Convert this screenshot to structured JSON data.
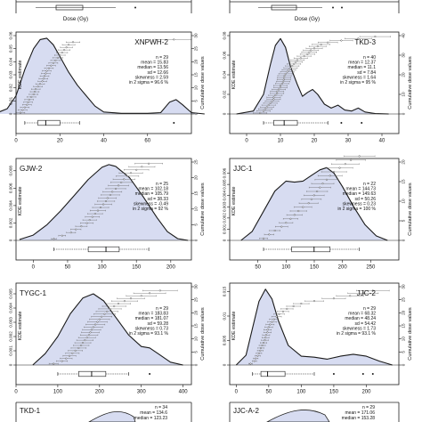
{
  "figure": {
    "x_axis_title": "Dose (Gy)",
    "y_left_title": "KDE estimate",
    "y_right_title": "Cumulative dose values"
  },
  "chart_data": [
    {
      "type": "area",
      "panel": "top-left-partial",
      "visible": "partial",
      "title": "",
      "xlabel": "Dose (Gy)",
      "x_ticks": [],
      "y_ticks": [],
      "stats": [],
      "kde": [],
      "right_ticks": [],
      "outliers": []
    },
    {
      "type": "area",
      "panel": "top-right-partial",
      "visible": "partial",
      "title": "",
      "xlabel": "Dose (Gy)",
      "x_ticks": [],
      "y_ticks": [],
      "stats": [],
      "kde": [],
      "right_ticks": [],
      "outliers": []
    },
    {
      "type": "area",
      "title": "XNPWH-2",
      "xlabel": "",
      "xlim": [
        0,
        80
      ],
      "x_ticks": [
        0,
        20,
        40,
        60
      ],
      "ylim": [
        0,
        0.06
      ],
      "y_ticks": [
        0.0,
        0.01,
        0.02,
        0.03,
        0.04,
        0.05,
        0.06
      ],
      "y_right": [
        0,
        30
      ],
      "right_ticks": [
        0,
        5,
        10,
        15,
        20,
        25,
        30
      ],
      "stats": [
        "n = 29",
        "mean = 15.83",
        "median = 13.56",
        "sd = 12.66",
        "skewness = 2.59",
        "in 2 sigma = 96.6 %"
      ],
      "kde": [
        [
          -10,
          0
        ],
        [
          -4,
          0.004
        ],
        [
          0,
          0.014
        ],
        [
          4,
          0.034
        ],
        [
          8,
          0.05
        ],
        [
          11,
          0.057
        ],
        [
          14,
          0.058
        ],
        [
          17,
          0.053
        ],
        [
          20,
          0.044
        ],
        [
          24,
          0.032
        ],
        [
          28,
          0.022
        ],
        [
          32,
          0.014
        ],
        [
          36,
          0.006
        ],
        [
          40,
          0.0015
        ],
        [
          48,
          0.0005
        ],
        [
          60,
          0.0005
        ],
        [
          66,
          0.001
        ],
        [
          70,
          0.009
        ],
        [
          73,
          0.011
        ],
        [
          76,
          0.007
        ],
        [
          80,
          0.001
        ],
        [
          86,
          0
        ]
      ],
      "box": {
        "min": 4,
        "q1": 10,
        "median": 13.56,
        "q3": 20,
        "max": 29
      },
      "outliers": [
        72
      ],
      "cumulative": [
        2,
        3,
        4,
        5,
        5.5,
        6,
        7,
        8,
        8.5,
        9,
        10,
        11,
        12,
        12.5,
        13,
        13.56,
        14,
        15,
        16,
        17,
        18,
        19,
        20,
        21,
        22,
        23,
        24,
        26,
        72
      ]
    },
    {
      "type": "area",
      "title": "TKD-3",
      "xlabel": "",
      "xlim": [
        -5,
        45
      ],
      "x_ticks": [
        0,
        10,
        20,
        30,
        40
      ],
      "ylim": [
        0,
        0.08
      ],
      "y_ticks": [
        0.0,
        0.02,
        0.04,
        0.06,
        0.08
      ],
      "y_right": [
        0,
        40
      ],
      "right_ticks": [
        0,
        10,
        20,
        30,
        40
      ],
      "stats": [
        "n = 40",
        "mean = 12.37",
        "median = 11.1",
        "sd = 7.84",
        "skewness = 1.64",
        "in 2 sigma = 95 %"
      ],
      "kde": [
        [
          -3,
          0
        ],
        [
          2,
          0.003
        ],
        [
          5,
          0.02
        ],
        [
          7,
          0.05
        ],
        [
          8.5,
          0.07
        ],
        [
          10,
          0.077
        ],
        [
          11.5,
          0.068
        ],
        [
          13,
          0.048
        ],
        [
          15,
          0.03
        ],
        [
          16.5,
          0.018
        ],
        [
          18,
          0.022
        ],
        [
          19.5,
          0.025
        ],
        [
          21,
          0.02
        ],
        [
          23,
          0.01
        ],
        [
          25,
          0.006
        ],
        [
          27,
          0.009
        ],
        [
          29,
          0.004
        ],
        [
          31,
          0.003
        ],
        [
          33,
          0.006
        ],
        [
          35,
          0.002
        ],
        [
          38,
          0.0005
        ],
        [
          42,
          0
        ]
      ],
      "box": {
        "min": 5,
        "q1": 8,
        "median": 11.1,
        "q3": 15,
        "max": 24
      },
      "outliers": [
        28,
        34
      ],
      "cumulative": [
        4,
        5,
        5.5,
        6,
        6.5,
        7,
        7.5,
        8,
        8,
        8.5,
        9,
        9,
        9.5,
        10,
        10,
        10.5,
        10.8,
        11,
        11.1,
        11.2,
        11.5,
        12,
        12.5,
        13,
        13.5,
        14,
        14.5,
        15,
        16,
        17,
        18,
        18.5,
        19,
        20,
        21,
        22,
        24,
        28,
        33,
        38
      ]
    },
    {
      "type": "area",
      "title": "GJW-2",
      "xlabel": "",
      "xlim": [
        -25,
        230
      ],
      "x_ticks": [
        0,
        50,
        100,
        150,
        200
      ],
      "ylim": [
        0,
        0.009
      ],
      "y_ticks": [
        0.0,
        0.002,
        0.004,
        0.006,
        0.008
      ],
      "y_right": [
        0,
        25
      ],
      "right_ticks": [
        0,
        5,
        10,
        15,
        20,
        25
      ],
      "stats": [
        "n = 25",
        "mean = 102.18",
        "median = 105.79",
        "sd = 38.33",
        "skewness = -0.49",
        "in 2 sigma = 92 %"
      ],
      "kde": [
        [
          -20,
          0.0001
        ],
        [
          0,
          0.0006
        ],
        [
          20,
          0.0018
        ],
        [
          40,
          0.0034
        ],
        [
          60,
          0.0052
        ],
        [
          80,
          0.007
        ],
        [
          100,
          0.0084
        ],
        [
          110,
          0.0087
        ],
        [
          120,
          0.0085
        ],
        [
          140,
          0.0072
        ],
        [
          160,
          0.005
        ],
        [
          180,
          0.0026
        ],
        [
          195,
          0.001
        ],
        [
          210,
          0.0002
        ],
        [
          225,
          0
        ]
      ],
      "box": {
        "min": 30,
        "q1": 80,
        "median": 105.79,
        "q3": 125,
        "max": 168
      },
      "outliers": [],
      "cumulative": [
        30,
        42,
        55,
        62,
        70,
        78,
        82,
        86,
        90,
        94,
        98,
        102,
        105.79,
        108,
        112,
        115,
        120,
        124,
        128,
        132,
        137,
        142,
        150,
        158,
        168
      ]
    },
    {
      "type": "area",
      "title": "JJC-1",
      "xlabel": "",
      "xlim": [
        0,
        300
      ],
      "x_ticks": [
        50,
        100,
        150,
        200,
        250
      ],
      "ylim": [
        0,
        0.007
      ],
      "y_ticks": [
        0.0,
        0.001,
        0.002,
        0.003,
        0.004,
        0.005,
        0.006
      ],
      "y_right": [
        0,
        22
      ],
      "right_ticks": [
        0,
        5,
        10,
        15,
        20
      ],
      "stats": [
        "n = 22",
        "mean = 144.73",
        "median = 149.63",
        "sd = 50.26",
        "skewness = 0.23",
        "in 2 sigma = 100 %"
      ],
      "kde": [
        [
          20,
          0
        ],
        [
          40,
          0.0008
        ],
        [
          60,
          0.0026
        ],
        [
          80,
          0.0044
        ],
        [
          100,
          0.0053
        ],
        [
          115,
          0.0052
        ],
        [
          130,
          0.0053
        ],
        [
          145,
          0.0058
        ],
        [
          160,
          0.0063
        ],
        [
          172,
          0.0065
        ],
        [
          185,
          0.006
        ],
        [
          200,
          0.0048
        ],
        [
          220,
          0.003
        ],
        [
          240,
          0.0014
        ],
        [
          260,
          0.0004
        ],
        [
          280,
          0
        ]
      ],
      "box": {
        "min": 60,
        "q1": 110,
        "median": 149.63,
        "q3": 178,
        "max": 230
      },
      "outliers": [],
      "cumulative": [
        60,
        70,
        80,
        92,
        100,
        108,
        115,
        122,
        130,
        140,
        145,
        149.63,
        155,
        160,
        165,
        172,
        178,
        185,
        195,
        205,
        215,
        230
      ]
    },
    {
      "type": "area",
      "title": "TYGC-1",
      "xlabel": "",
      "xlim": [
        0,
        420
      ],
      "x_ticks": [
        0,
        100,
        200,
        300,
        400
      ],
      "ylim": [
        0,
        0.0055
      ],
      "y_ticks": [
        0.0,
        0.001,
        0.002,
        0.003,
        0.004,
        0.005
      ],
      "y_right": [
        0,
        30
      ],
      "right_ticks": [
        0,
        5,
        10,
        15,
        20,
        25,
        30
      ],
      "stats": [
        "n = 29",
        "mean = 183.83",
        "median = 181.07",
        "sd = 59.28",
        "skewness = 0.73",
        "in 2 sigma = 93.1 %"
      ],
      "kde": [
        [
          40,
          0
        ],
        [
          70,
          0.0008
        ],
        [
          100,
          0.002
        ],
        [
          130,
          0.0036
        ],
        [
          160,
          0.0047
        ],
        [
          185,
          0.005
        ],
        [
          210,
          0.0045
        ],
        [
          240,
          0.0033
        ],
        [
          270,
          0.0021
        ],
        [
          300,
          0.0013
        ],
        [
          320,
          0.0012
        ],
        [
          340,
          0.0008
        ],
        [
          370,
          0.0002
        ],
        [
          400,
          0
        ]
      ],
      "box": {
        "min": 100,
        "q1": 150,
        "median": 181.07,
        "q3": 215,
        "max": 270
      },
      "outliers": [
        320
      ],
      "cumulative": [
        90,
        110,
        120,
        128,
        135,
        142,
        150,
        156,
        160,
        165,
        170,
        175,
        178,
        181.07,
        185,
        190,
        195,
        200,
        205,
        212,
        218,
        225,
        235,
        245,
        260,
        275,
        300,
        320,
        345
      ]
    },
    {
      "type": "area",
      "title": "JJC-2",
      "xlabel": "",
      "xlim": [
        -10,
        250
      ],
      "x_ticks": [
        0,
        50,
        100,
        150,
        200
      ],
      "ylim": [
        0,
        0.016
      ],
      "y_ticks": [
        0.0,
        0.005,
        0.01,
        0.015
      ],
      "y_right": [
        0,
        30
      ],
      "right_ticks": [
        0,
        5,
        10,
        15,
        20,
        25,
        30
      ],
      "stats": [
        "n = 29",
        "mean = 68.32",
        "median = 48.24",
        "sd = 54.42",
        "skewness = 1.73",
        "in 2 sigma = 93.1 %"
      ],
      "kde": [
        [
          0,
          0
        ],
        [
          15,
          0.002
        ],
        [
          25,
          0.0075
        ],
        [
          35,
          0.013
        ],
        [
          45,
          0.0155
        ],
        [
          55,
          0.0135
        ],
        [
          65,
          0.009
        ],
        [
          80,
          0.004
        ],
        [
          100,
          0.0018
        ],
        [
          120,
          0.0016
        ],
        [
          140,
          0.0012
        ],
        [
          160,
          0.0018
        ],
        [
          180,
          0.0022
        ],
        [
          200,
          0.0018
        ],
        [
          220,
          0.0008
        ],
        [
          240,
          0
        ]
      ],
      "box": {
        "min": 25,
        "q1": 38,
        "median": 48.24,
        "q3": 75,
        "max": 120
      },
      "outliers": [
        150,
        195,
        210
      ],
      "cumulative": [
        22,
        28,
        30,
        33,
        35,
        37,
        38,
        40,
        42,
        44,
        45,
        46,
        48,
        48.24,
        50,
        52,
        55,
        58,
        62,
        66,
        72,
        78,
        88,
        100,
        120,
        150,
        175,
        195,
        210
      ]
    },
    {
      "type": "area",
      "title": "TKD-1",
      "visible": "partial",
      "stats": [
        "n = 34",
        "mean = 134.6",
        "median = 123.23"
      ],
      "kde": [],
      "right_ticks": [],
      "outliers": []
    },
    {
      "type": "area",
      "title": "JJC-A-2",
      "visible": "partial",
      "stats": [
        "n = 29",
        "mean = 171.06",
        "median = 153.28"
      ],
      "kde": [],
      "right_ticks": [],
      "outliers": []
    }
  ]
}
